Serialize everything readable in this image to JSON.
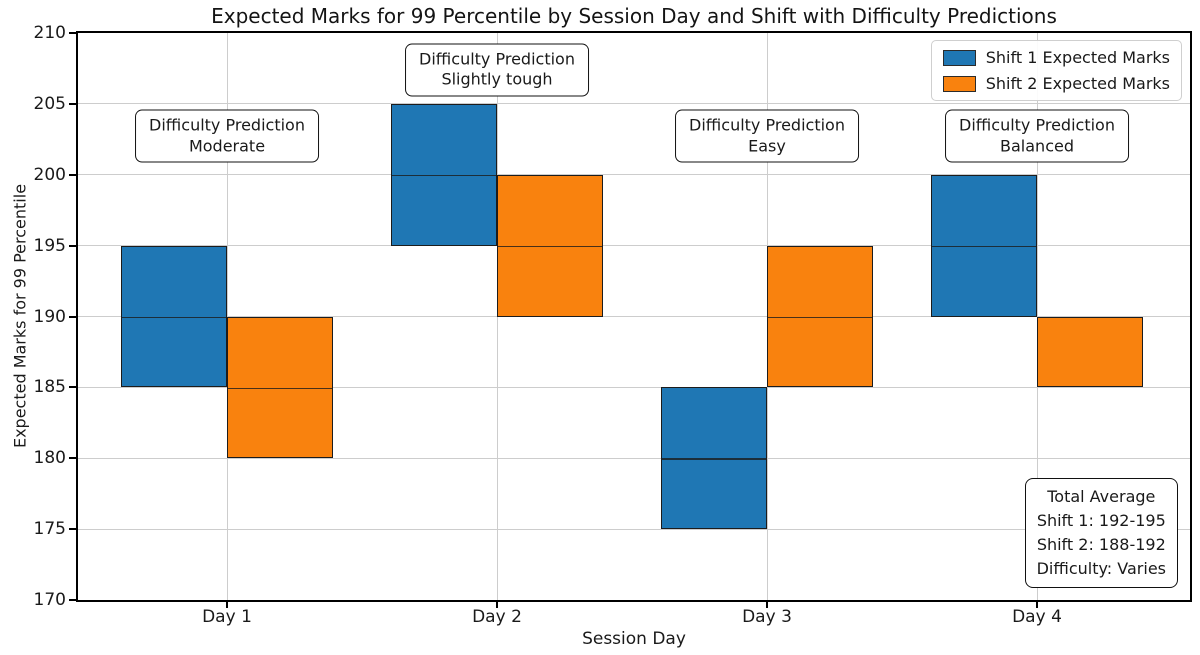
{
  "chart_data": {
    "type": "bar",
    "variant": "floating-range-stacked-segments",
    "title": "Expected Marks for 99 Percentile by Session Day and Shift with Difficulty Predictions",
    "xlabel": "Session Day",
    "ylabel": "Expected Marks for 99 Percentile",
    "ylim": [
      170,
      210
    ],
    "yticks": [
      170,
      175,
      180,
      185,
      190,
      195,
      200,
      205,
      210
    ],
    "categories": [
      "Day 1",
      "Day 2",
      "Day 3",
      "Day 4"
    ],
    "grid": true,
    "legend_position": "upper right",
    "series": [
      {
        "name": "Shift 1 Expected Marks",
        "color": "#1f77b4",
        "edge_color": "#1c1c1c",
        "ranges": [
          [
            185,
            195
          ],
          [
            195,
            205
          ],
          [
            175,
            185
          ],
          [
            190,
            200
          ]
        ],
        "dividers": [
          190,
          200,
          180,
          195
        ]
      },
      {
        "name": "Shift 2 Expected Marks",
        "color": "#f9820e",
        "edge_color": "#1c1c1c",
        "ranges": [
          [
            180,
            190
          ],
          [
            190,
            200
          ],
          [
            185,
            195
          ],
          [
            185,
            190
          ]
        ],
        "dividers": [
          185,
          195,
          190,
          null
        ]
      }
    ],
    "annotations": [
      {
        "category": "Day 1",
        "lines": [
          "Difficulty Prediction",
          "Moderate"
        ],
        "y_center": 202.7
      },
      {
        "category": "Day 2",
        "lines": [
          "Difficulty Prediction",
          "Slightly tough"
        ],
        "y_center": 207.4
      },
      {
        "category": "Day 3",
        "lines": [
          "Difficulty Prediction",
          "Easy"
        ],
        "y_center": 202.7
      },
      {
        "category": "Day 4",
        "lines": [
          "Difficulty Prediction",
          "Balanced"
        ],
        "y_center": 202.7
      }
    ],
    "summary_box": {
      "lines": [
        "Total Average",
        "Shift 1: 192-195",
        "Shift 2: 188-192",
        "Difficulty: Varies"
      ]
    }
  }
}
